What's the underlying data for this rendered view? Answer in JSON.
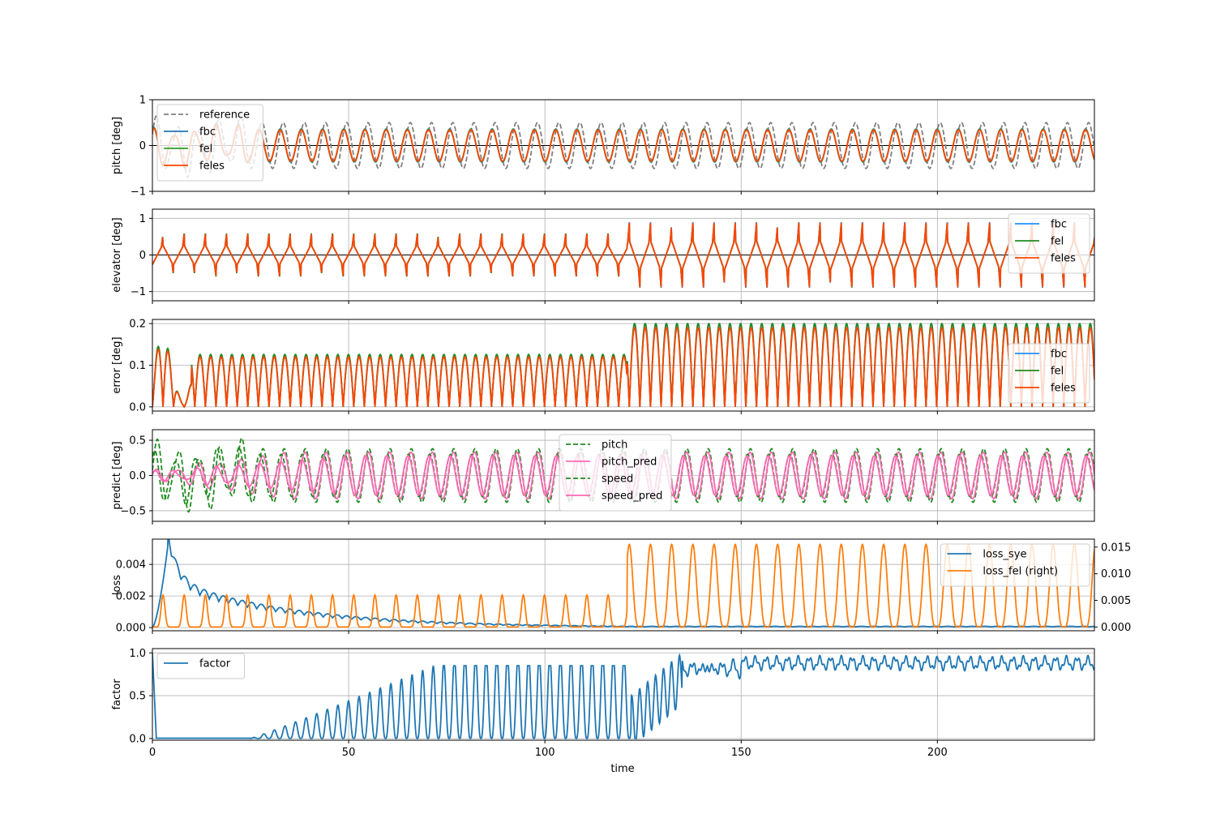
{
  "chart_data": {
    "type": "line",
    "title": "",
    "shared_x": {
      "label": "time",
      "lim": [
        0,
        240
      ],
      "ticks": [
        0,
        50,
        100,
        150,
        200
      ],
      "tick_labels": [
        "0",
        "50",
        "100",
        "150",
        "200"
      ]
    },
    "grid": true,
    "subplots": [
      {
        "id": "pitch",
        "ylabel": "pitch [deg]",
        "ylim": [
          -1,
          1
        ],
        "yticks": [
          -1,
          0,
          1
        ],
        "ytick_labels": [
          "−1",
          "0",
          "1"
        ],
        "legend_loc": "upper-left",
        "series": [
          {
            "name": "reference",
            "color": "#808080",
            "dash": true,
            "generator": {
              "kind": "sine",
              "amp": 0.5,
              "period": 5.4,
              "phase": 0.5
            }
          },
          {
            "name": "fbc",
            "color": "#1f77b4",
            "generator": {
              "kind": "sine",
              "amp": 0.36,
              "period": 5.4,
              "phase": 1.4
            }
          },
          {
            "name": "fel",
            "color": "#2ca02c",
            "generator": {
              "kind": "sine",
              "amp": 0.35,
              "period": 5.4,
              "phase": 1.4
            }
          },
          {
            "name": "feles",
            "color": "#ff4500",
            "generator": {
              "kind": "sine",
              "amp": 0.34,
              "period": 5.4,
              "phase": 1.4
            }
          }
        ]
      },
      {
        "id": "elevator",
        "ylabel": "elevator [deg]",
        "ylim": [
          -1.25,
          1.25
        ],
        "yticks": [
          -1,
          0,
          1
        ],
        "ytick_labels": [
          "−1",
          "0",
          "1"
        ],
        "legend_loc": "upper-right",
        "series": [
          {
            "name": "fbc",
            "color": "#1e90ff",
            "generator": {
              "kind": "spike",
              "period": 5.4,
              "amp1": 0.72,
              "amp2": 1.1,
              "switch": 121
            }
          },
          {
            "name": "fel",
            "color": "#228b22",
            "generator": {
              "kind": "spike",
              "period": 5.4,
              "amp1": 0.72,
              "amp2": 1.05,
              "switch": 121
            }
          },
          {
            "name": "feles",
            "color": "#ff4500",
            "generator": {
              "kind": "spike",
              "period": 5.4,
              "amp1": 0.7,
              "amp2": 1.08,
              "switch": 121
            }
          }
        ]
      },
      {
        "id": "error",
        "ylabel": "error [deg]",
        "ylim": [
          -0.01,
          0.21
        ],
        "yticks": [
          0.0,
          0.1,
          0.2
        ],
        "ytick_labels": [
          "0.0",
          "0.1",
          "0.2"
        ],
        "legend_loc": "center-right",
        "series": [
          {
            "name": "fbc",
            "color": "#1e90ff",
            "generator": {
              "kind": "abs",
              "period": 2.7,
              "amp1": 0.125,
              "amp2": 0.2,
              "switch": 121
            }
          },
          {
            "name": "fel",
            "color": "#228b22",
            "generator": {
              "kind": "abs",
              "period": 2.7,
              "amp1": 0.126,
              "amp2": 0.2,
              "switch": 121
            }
          },
          {
            "name": "feles",
            "color": "#ff4500",
            "generator": {
              "kind": "abs",
              "period": 2.7,
              "amp1": 0.12,
              "amp2": 0.19,
              "switch": 121
            }
          }
        ]
      },
      {
        "id": "predict",
        "ylabel": "predict [deg]",
        "ylim": [
          -0.65,
          0.65
        ],
        "yticks": [
          -0.5,
          0.0,
          0.5
        ],
        "ytick_labels": [
          "−0.5",
          "0.0",
          "0.5"
        ],
        "legend_loc": "upper-center",
        "series": [
          {
            "name": "pitch",
            "color": "#228b22",
            "dash": true,
            "generator": {
              "kind": "sine",
              "amp": 0.38,
              "period": 5.4,
              "phase": 0.2
            }
          },
          {
            "name": "pitch_pred",
            "color": "#ff69b4",
            "generator": {
              "kind": "growsine",
              "amp": 0.33,
              "period": 5.4,
              "phase": 0.3,
              "grow": 40
            }
          },
          {
            "name": "speed",
            "color": "#228b22",
            "dash": true,
            "generator": {
              "kind": "sine",
              "amp": 0.3,
              "period": 5.4,
              "phase": 1.1
            }
          },
          {
            "name": "speed_pred",
            "color": "#ff69b4",
            "generator": {
              "kind": "growsine",
              "amp": 0.28,
              "period": 5.4,
              "phase": 1.2,
              "grow": 60
            }
          }
        ]
      },
      {
        "id": "loss",
        "ylabel": "loss",
        "ylim": [
          -0.0002,
          0.0056
        ],
        "yticks": [
          0.0,
          0.002,
          0.004
        ],
        "ytick_labels": [
          "0.000",
          "0.002",
          "0.004"
        ],
        "ylim_right": [
          -0.0007,
          0.0165
        ],
        "yticks_right": [
          0.0,
          0.005,
          0.01,
          0.015
        ],
        "ytick_labels_right": [
          "0.000",
          "0.005",
          "0.010",
          "0.015"
        ],
        "legend_loc": "upper-right",
        "series": [
          {
            "name": "loss_sye",
            "color": "#1f77b4",
            "axis": "left",
            "generator": {
              "kind": "decay",
              "peak": 0.0053,
              "peak_t": 4
            }
          },
          {
            "name": "loss_fel (right)",
            "color": "#ff7f0e",
            "axis": "right",
            "generator": {
              "kind": "pulses",
              "period": 5.4,
              "amp1": 0.006,
              "amp2": 0.0155,
              "switch": 121
            }
          }
        ]
      },
      {
        "id": "factor",
        "ylabel": "factor",
        "ylim": [
          -0.02,
          1.05
        ],
        "yticks": [
          0.0,
          0.5,
          1.0
        ],
        "ytick_labels": [
          "0.0",
          "0.5",
          "1.0"
        ],
        "legend_loc": "upper-left",
        "series": [
          {
            "name": "factor",
            "color": "#1f77b4",
            "generator": {
              "kind": "factor"
            }
          }
        ]
      }
    ]
  }
}
